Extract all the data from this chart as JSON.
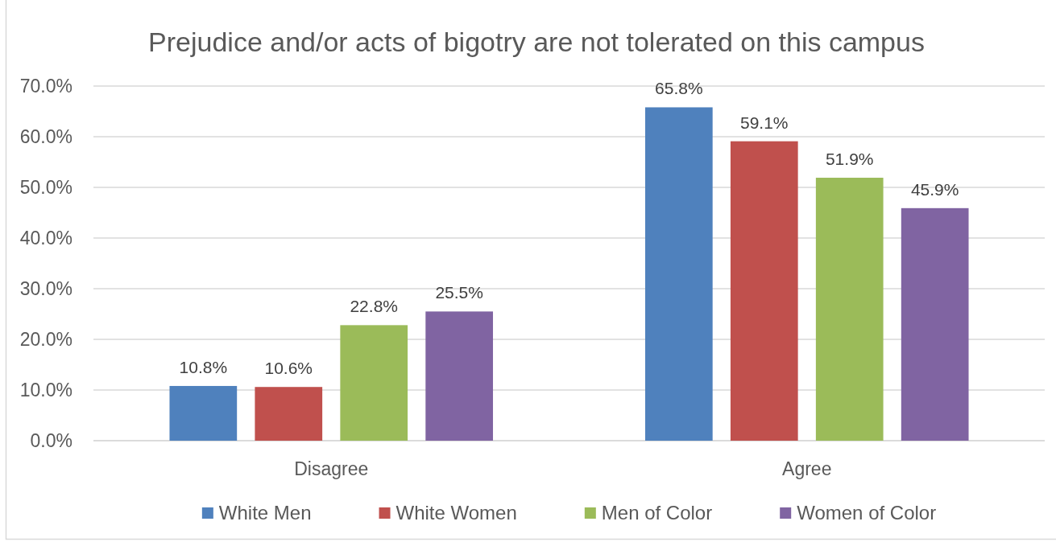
{
  "chart_data": {
    "type": "bar",
    "title": "Prejudice and/or acts of bigotry are not tolerated on this campus",
    "categories": [
      "Disagree",
      "Agree"
    ],
    "series": [
      {
        "name": "White Men",
        "color": "#4f81bd",
        "values": [
          10.8,
          65.8
        ],
        "value_labels": [
          "10.8%",
          "65.8%"
        ]
      },
      {
        "name": "White Women",
        "color": "#c0504d",
        "values": [
          10.6,
          59.1
        ],
        "value_labels": [
          "10.6%",
          "59.1%"
        ]
      },
      {
        "name": "Men of Color",
        "color": "#9bbb59",
        "values": [
          22.8,
          51.9
        ],
        "value_labels": [
          "22.8%",
          "51.9%"
        ]
      },
      {
        "name": "Women of Color",
        "color": "#8064a2",
        "values": [
          25.5,
          45.9
        ],
        "value_labels": [
          "25.5%",
          "45.9%"
        ]
      }
    ],
    "ylim": [
      0,
      70
    ],
    "yticks": [
      {
        "value": 0,
        "label": "0.0%"
      },
      {
        "value": 10,
        "label": "10.0%"
      },
      {
        "value": 20,
        "label": "20.0%"
      },
      {
        "value": 30,
        "label": "30.0%"
      },
      {
        "value": 40,
        "label": "40.0%"
      },
      {
        "value": 50,
        "label": "50.0%"
      },
      {
        "value": 60,
        "label": "60.0%"
      },
      {
        "value": 70,
        "label": "70.0%"
      }
    ],
    "grid": "y",
    "legend": "bottom"
  }
}
